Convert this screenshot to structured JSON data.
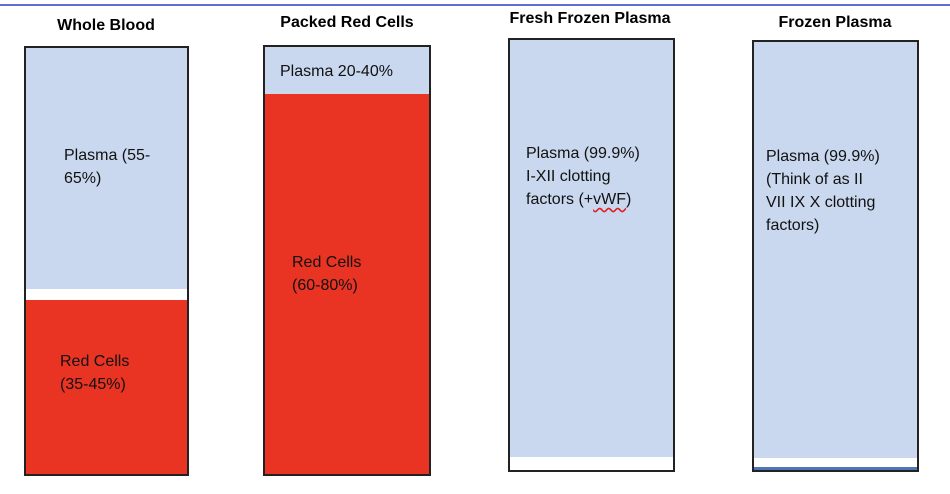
{
  "colors": {
    "plasma": "#c9d8ee",
    "red_cells": "#e93323",
    "rule": "#5b6fd0"
  },
  "columns": [
    {
      "title": "Whole Blood",
      "plasma_label": "Plasma (55-\n65%)",
      "red_label": "Red Cells\n(35-45%)"
    },
    {
      "title": "Packed Red Cells",
      "plasma_label": "Plasma 20-40%",
      "red_label": "Red Cells\n(60-80%)"
    },
    {
      "title": "Fresh Frozen Plasma",
      "lines": [
        "Plasma (99.9%)",
        "I-XII clotting",
        "factors (+",
        "vWF",
        ")"
      ]
    },
    {
      "title": "Frozen Plasma",
      "lines": [
        "Plasma (99.9%)",
        "(Think of as II",
        "VII IX X clotting",
        "factors)"
      ]
    }
  ]
}
